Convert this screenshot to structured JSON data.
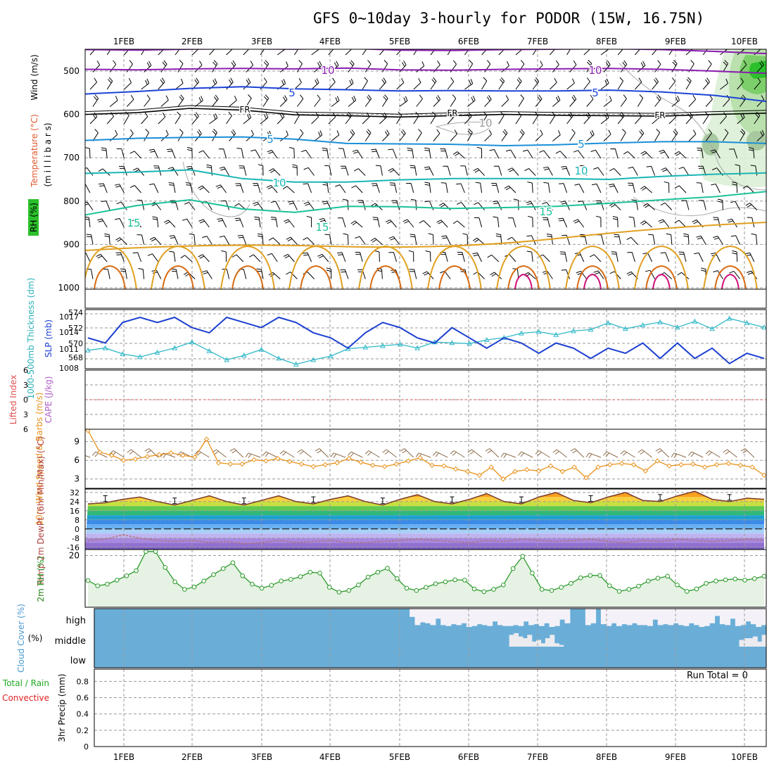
{
  "title": "GFS 0~10day 3-hourly for PODOR (15W, 16.75N)",
  "dates": [
    "1FEB",
    "2FEB",
    "3FEB",
    "4FEB",
    "5FEB",
    "6FEB",
    "7FEB",
    "8FEB",
    "9FEB",
    "10FEB"
  ],
  "colors": {
    "purple": "#8a1fb0",
    "blue": "#1c44d6",
    "lightblue": "#1a8fd8",
    "teal": "#1ab5b5",
    "green_teal": "#1cc29a",
    "orange": "#e0a020",
    "darkorange": "#d86a10",
    "magenta": "#d0107a",
    "slp": "#1c3fd0",
    "thickness": "#30b8c8",
    "wind_orange": "#e8921c",
    "rh_green": "#2a9a2a",
    "cloud": "#6aaed8",
    "cloud_clear": "#f4f2f8",
    "precip_green": "#22aa22",
    "precip_red": "#e02020"
  },
  "chart_data": [
    {
      "type": "line",
      "panel": "upper-air cross-section",
      "ylabel_parts": [
        "Wind (m/s)",
        "Temperature (°C)",
        "RH (%)",
        "(m i l l i b a r s)"
      ],
      "pressure_ticks": [
        500,
        600,
        700,
        800,
        900,
        1000
      ],
      "ylim": [
        450,
        1000
      ],
      "contour_labels": [
        "10",
        "10",
        "5",
        "5",
        "FR",
        "FR",
        "FR",
        "10",
        "5",
        "5",
        "10",
        "10",
        "15",
        "15",
        "15"
      ],
      "isotherms": [
        {
          "label": "-10",
          "color": "purple",
          "levels_mb": [
            496,
            497,
            495,
            494,
            495,
            493,
            497,
            498,
            496,
            495,
            494,
            496,
            500,
            505
          ]
        },
        {
          "label": "-5",
          "color": "blue",
          "levels_mb": [
            553,
            547,
            540,
            536,
            541,
            543,
            546,
            545,
            546,
            546,
            544,
            548,
            556,
            570
          ]
        },
        {
          "label": "FR",
          "color": "black",
          "levels_mb": [
            600,
            596,
            586,
            590,
            601,
            603,
            606,
            603,
            600,
            602,
            603,
            604,
            600,
            597
          ]
        },
        {
          "label": "5",
          "color": "lightblue",
          "levels_mb": [
            660,
            655,
            653,
            652,
            657,
            667,
            668,
            669,
            672,
            670,
            666,
            663,
            663,
            667
          ]
        },
        {
          "label": "10",
          "color": "teal",
          "levels_mb": [
            736,
            733,
            728,
            748,
            756,
            756,
            751,
            748,
            748,
            748,
            750,
            743,
            738,
            735
          ]
        },
        {
          "label": "15",
          "color": "green_teal",
          "levels_mb": [
            832,
            810,
            797,
            818,
            826,
            812,
            813,
            817,
            815,
            812,
            805,
            797,
            790,
            778
          ]
        }
      ]
    },
    {
      "type": "line",
      "panel": "SLP and thickness",
      "ylabel": "SLP (mb)",
      "ylabel2": "1000-500mb Thickness (dm)",
      "left_ticks": [
        "574",
        "572",
        "570",
        "568"
      ],
      "right_ticks": [
        "1017",
        "1014",
        "1011",
        "1008"
      ],
      "slp_ylim": [
        1007,
        1018.5
      ],
      "thickness_ylim": [
        567,
        575
      ],
      "slp_mb": [
        1013,
        1012,
        1016,
        1017,
        1016,
        1017,
        1015,
        1014,
        1017,
        1016,
        1015,
        1017,
        1016,
        1014,
        1013,
        1011,
        1014,
        1016,
        1015,
        1013,
        1012,
        1015,
        1013,
        1011,
        1013,
        1012,
        1010,
        1012,
        1011,
        1009,
        1011,
        1010,
        1012,
        1009,
        1012,
        1009,
        1011,
        1008,
        1010,
        1009
      ],
      "thickness_dm": [
        569.5,
        569.8,
        569.0,
        568.6,
        569.2,
        569.8,
        570.6,
        569.4,
        568.2,
        568.8,
        569.6,
        568.4,
        567.6,
        568.2,
        568.7,
        569.7,
        569.9,
        570.1,
        570.3,
        569.8,
        570.6,
        570.5,
        570.4,
        570.9,
        571.2,
        571.8,
        572.0,
        571.6,
        572.1,
        572.3,
        573.2,
        572.4,
        572.9,
        573.3,
        572.6,
        573.4,
        572.4,
        573.8,
        573.2,
        572.6
      ]
    },
    {
      "type": "line",
      "panel": "Lifted Index and CAPE",
      "ylabel": "Lifted Index",
      "ylabel2": "CAPE (J/kg)",
      "ticks": [
        "6",
        "3",
        "0",
        "3",
        "6"
      ],
      "values": []
    },
    {
      "type": "line",
      "panel": "10m wind",
      "ylabel": "10m Wind Speed & Barbs (m/s)",
      "ticks": [
        9,
        6,
        3
      ],
      "ylim": [
        1.5,
        11
      ],
      "speed_ms": [
        10.8,
        7.3,
        6.8,
        6.0,
        6.2,
        6.6,
        6.9,
        7.2,
        6.8,
        6.5,
        9.4,
        5.6,
        5.4,
        5.4,
        6.1,
        5.9,
        6.3,
        5.8,
        5.4,
        5.0,
        5.3,
        5.6,
        6.3,
        5.7,
        5.2,
        5.0,
        5.4,
        5.9,
        6.4,
        5.2,
        5.1,
        4.6,
        4.2,
        3.6,
        4.9,
        3.0,
        4.2,
        4.5,
        4.3,
        5.1,
        4.2,
        4.9,
        3.2,
        4.9,
        5.3,
        5.5,
        5.3,
        4.3,
        5.9,
        5.1,
        5.3,
        5.4,
        4.9,
        5.3,
        5.5,
        5.2,
        4.9,
        3.6
      ]
    },
    {
      "type": "area",
      "panel": "2m temperature and dewpoint",
      "ylabel": "2m Temp 2m DewPt (6hr Min/Max) (°C)",
      "ticks": [
        "32",
        "24",
        "16",
        "8",
        "0",
        "-8",
        "-16"
      ],
      "ylim": [
        -18,
        35
      ],
      "temp_c": [
        22,
        23,
        26,
        28,
        24,
        21,
        25,
        29,
        24,
        21,
        25,
        29,
        24,
        22,
        26,
        29,
        24,
        21,
        26,
        30,
        24,
        22,
        26,
        31,
        24,
        22,
        28,
        32,
        25,
        23,
        28,
        32,
        25,
        24,
        29,
        33,
        26,
        24,
        27,
        26
      ],
      "dewpoint_c": [
        -10,
        -9,
        -5,
        -8,
        -10,
        -11,
        -10,
        -12,
        -11,
        -13,
        -12,
        -10,
        -12,
        -11,
        -10,
        -12,
        -12,
        -11,
        -10,
        -9,
        -10,
        -11,
        -12,
        -10,
        -11,
        -9,
        -10,
        -11,
        -10,
        -9,
        -11,
        -12,
        -10,
        -11,
        -9,
        -10,
        -11,
        -10,
        -9,
        -10
      ]
    },
    {
      "type": "area",
      "panel": "2m relative humidity",
      "ylabel": "2m RH (%)",
      "ticks": [
        20
      ],
      "ylim": [
        7,
        21.5
      ],
      "rh_pct": [
        13.7,
        12.4,
        12.8,
        13.8,
        14.9,
        16.2,
        21.0,
        21.0,
        17.0,
        13.4,
        11.5,
        12.1,
        13.6,
        15.2,
        16.7,
        18.2,
        14.9,
        12.8,
        11.8,
        12.5,
        13.6,
        14.0,
        14.7,
        15.8,
        15.6,
        12.0,
        10.8,
        11.2,
        12.6,
        14.6,
        15.8,
        16.8,
        14.2,
        11.8,
        11.2,
        12.0,
        12.9,
        13.4,
        13.9,
        13.8,
        11.6,
        10.9,
        11.5,
        12.6,
        16.7,
        19.8,
        15.6,
        11.5,
        11.2,
        12.0,
        13.0,
        14.4,
        15.0,
        15.0,
        12.4,
        11.0,
        11.5,
        12.3,
        13.6,
        14.3,
        14.8,
        12.6,
        11.0,
        11.6,
        13.0,
        13.6,
        13.9,
        14.1,
        13.8,
        14.2,
        14.8
      ]
    },
    {
      "type": "area",
      "panel": "cloud cover",
      "ylabel": "Cloud Cover (%)",
      "levels": [
        "high",
        "middle",
        "low"
      ],
      "high_clear_fraction": [
        0,
        0,
        0,
        0,
        0,
        0,
        0,
        0,
        0,
        0,
        0,
        0,
        0,
        0,
        0,
        0,
        0,
        0,
        0,
        0,
        0,
        0,
        0,
        0,
        0,
        0,
        0,
        0,
        0,
        0,
        0,
        0,
        0,
        0,
        0,
        0,
        0,
        0,
        0,
        0,
        0,
        0,
        0,
        0,
        0,
        0,
        0,
        0,
        0,
        0,
        0,
        0,
        0,
        0,
        0,
        0,
        0,
        0,
        0,
        0,
        0,
        0.45,
        0.9,
        0.75,
        0.8,
        0.9,
        0.55,
        0.9,
        0.95,
        0.85,
        0.9,
        0.8,
        1.0,
        0.95,
        0.85,
        0.9,
        0.95,
        0.7,
        0.9,
        0.95,
        0.95,
        0.9,
        0.95,
        0.7,
        0.9,
        0.85,
        0.95,
        0.8,
        1,
        0.95,
        0.6,
        0.8,
        0,
        0,
        0,
        0.9,
        0.8,
        0,
        0.85,
        0.95,
        0.8,
        0.95,
        0.85,
        0.9,
        0.8,
        0.9,
        0.9,
        0.95,
        0.6,
        0.9,
        0.85,
        0.9,
        0.8,
        0.9,
        0.95,
        0.8,
        0.9,
        1,
        0.95,
        0.8,
        0.4,
        0.85,
        0.9,
        0.55,
        0.95,
        0.9,
        0.7,
        0.85,
        1,
        0.9
      ],
      "mid_clear_fraction": [
        0,
        0,
        0,
        0,
        0,
        0,
        0,
        0,
        0,
        0,
        0,
        0,
        0,
        0,
        0,
        0,
        0,
        0,
        0,
        0,
        0,
        0,
        0,
        0,
        0,
        0,
        0,
        0,
        0,
        0,
        0,
        0,
        0,
        0,
        0,
        0,
        0,
        0,
        0,
        0,
        0,
        0,
        0,
        0,
        0,
        0,
        0,
        0,
        0,
        0,
        0,
        0,
        0,
        0,
        0,
        0,
        0,
        0,
        0,
        0,
        0,
        0,
        0,
        0,
        0,
        0,
        0,
        0,
        0,
        0,
        0,
        0,
        0,
        0,
        0,
        0,
        0,
        0,
        0,
        0,
        0,
        0,
        0,
        0,
        0,
        0,
        0,
        0,
        0,
        0,
        0,
        0,
        0.7,
        0.8,
        0.6,
        0.5,
        0.7,
        0.3,
        0.4,
        0.2,
        0.5,
        0.7,
        0.2,
        0.1,
        0,
        0,
        0,
        0,
        0,
        0,
        0,
        0,
        0,
        0,
        0,
        0,
        0,
        0,
        0,
        0,
        0,
        0,
        0,
        0,
        0,
        0,
        0,
        0,
        0,
        0,
        0,
        0,
        0,
        0,
        0,
        0,
        0,
        0,
        0,
        0,
        0,
        0,
        0,
        0.4,
        0.5,
        0.5,
        0.6,
        0.3,
        0.7
      ]
    },
    {
      "type": "bar",
      "panel": "3hr precipitation",
      "ylabel": "3hr Precip (mm)",
      "legend": [
        "Total / Rain",
        "Convective"
      ],
      "ticks": [
        "0.8",
        "0.6",
        "0.4",
        "0.2",
        "0"
      ],
      "ylim": [
        0,
        0.95
      ],
      "values": [],
      "run_total_label": "Run Total = 0"
    }
  ]
}
